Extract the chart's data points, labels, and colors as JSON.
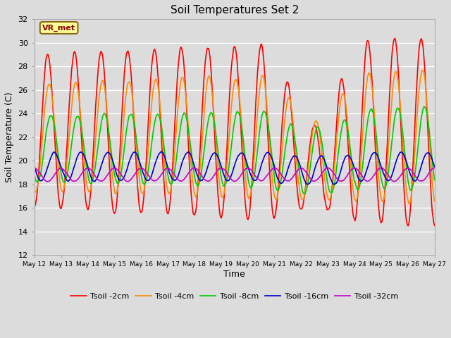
{
  "title": "Soil Temperatures Set 2",
  "xlabel": "Time",
  "ylabel": "Soil Temperature (C)",
  "ylim": [
    12,
    32
  ],
  "yticks": [
    12,
    14,
    16,
    18,
    20,
    22,
    24,
    26,
    28,
    30,
    32
  ],
  "annotation_text": "VR_met",
  "annotation_color": "#8B0000",
  "annotation_bg": "#FFFF99",
  "annotation_edge": "#8B6914",
  "bg_color": "#DCDCDC",
  "grid_color": "white",
  "legend_entries": [
    "Tsoil -2cm",
    "Tsoil -4cm",
    "Tsoil -8cm",
    "Tsoil -16cm",
    "Tsoil -32cm"
  ],
  "line_colors": [
    "#FF0000",
    "#FF8C00",
    "#00CC00",
    "#0000CC",
    "#CC00CC"
  ],
  "start_day": 0,
  "end_day": 15,
  "n_points": 720,
  "xtick_labels": [
    "May 12",
    "May 13",
    "May 14",
    "May 15",
    "May 16",
    "May 17",
    "May 18",
    "May 19",
    "May 20",
    "May 21",
    "May 22",
    "May 23",
    "May 24",
    "May 25",
    "May 26",
    "May 27"
  ],
  "xtick_positions": [
    0,
    1,
    2,
    3,
    4,
    5,
    6,
    7,
    8,
    9,
    10,
    11,
    12,
    13,
    14,
    15
  ]
}
